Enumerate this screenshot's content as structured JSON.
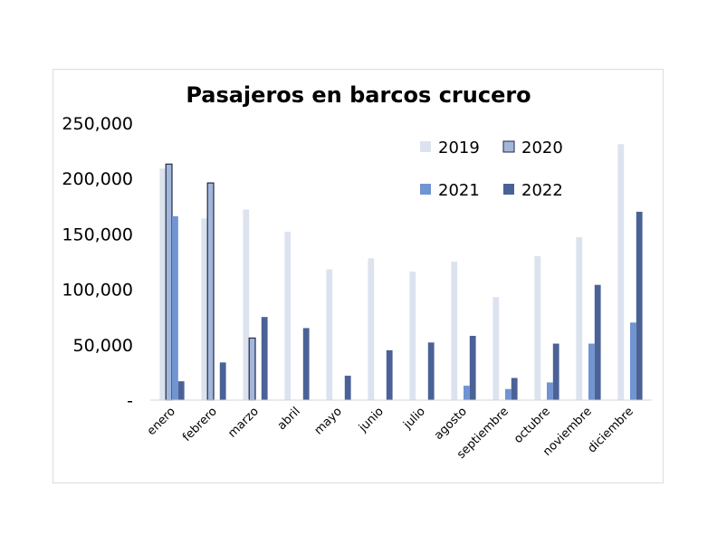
{
  "chart_data": {
    "type": "bar",
    "title": "Pasajeros en barcos crucero",
    "categories": [
      "enero",
      "febrero",
      "marzo",
      "abril",
      "mayo",
      "junio",
      "julio",
      "agosto",
      "septiembre",
      "octubre",
      "noviembre",
      "diciembre"
    ],
    "y_tick_labels": [
      "-",
      "50,000",
      "100,000",
      "150,000",
      "200,000",
      "250,000"
    ],
    "ylim": [
      0,
      250000
    ],
    "legend_position": "top-right",
    "grid": false,
    "series": [
      {
        "name": "2019",
        "color": "#dde3ee",
        "outline": false,
        "values": [
          209000,
          164000,
          172000,
          152000,
          118000,
          128000,
          116000,
          125000,
          93000,
          130000,
          147000,
          231000
        ]
      },
      {
        "name": "2020",
        "color": "#a4b6d9",
        "outline": true,
        "values": [
          213000,
          196000,
          56000,
          0,
          0,
          0,
          0,
          0,
          0,
          0,
          0,
          0
        ]
      },
      {
        "name": "2021",
        "color": "#7194d2",
        "outline": false,
        "values": [
          166000,
          0,
          0,
          0,
          0,
          0,
          0,
          13000,
          10000,
          16000,
          51000,
          70000
        ]
      },
      {
        "name": "2022",
        "color": "#4a6296",
        "outline": false,
        "values": [
          17000,
          34000,
          75000,
          65000,
          22000,
          45000,
          52000,
          58000,
          20000,
          51000,
          104000,
          170000
        ]
      }
    ]
  }
}
